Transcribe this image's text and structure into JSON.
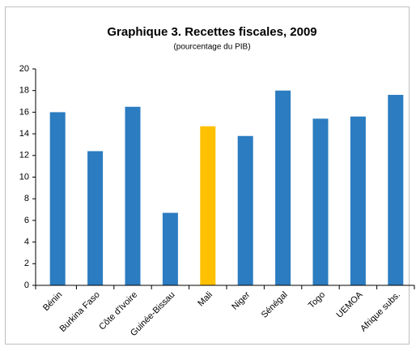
{
  "chart_data": {
    "type": "bar",
    "title": "Graphique 3. Recettes fiscales, 2009",
    "subtitle": "(pourcentage du PIB)",
    "categories": [
      "Bénin",
      "Burkina Faso",
      "Côte d'Ivoire",
      "Guinée-Bissau",
      "Mali",
      "Niger",
      "Sénégal",
      "Togo",
      "UEMOA",
      "Afrique subs."
    ],
    "values": [
      16.0,
      12.4,
      16.5,
      6.7,
      14.7,
      13.8,
      18.0,
      15.4,
      15.6,
      17.6
    ],
    "colors": [
      "#2b7cc0",
      "#2b7cc0",
      "#2b7cc0",
      "#2b7cc0",
      "#ffc000",
      "#2b7cc0",
      "#2b7cc0",
      "#2b7cc0",
      "#2b7cc0",
      "#2b7cc0"
    ],
    "ylim": [
      0,
      20
    ],
    "yticks": [
      0,
      2,
      4,
      6,
      8,
      10,
      12,
      14,
      16,
      18,
      20
    ],
    "grid": false
  }
}
